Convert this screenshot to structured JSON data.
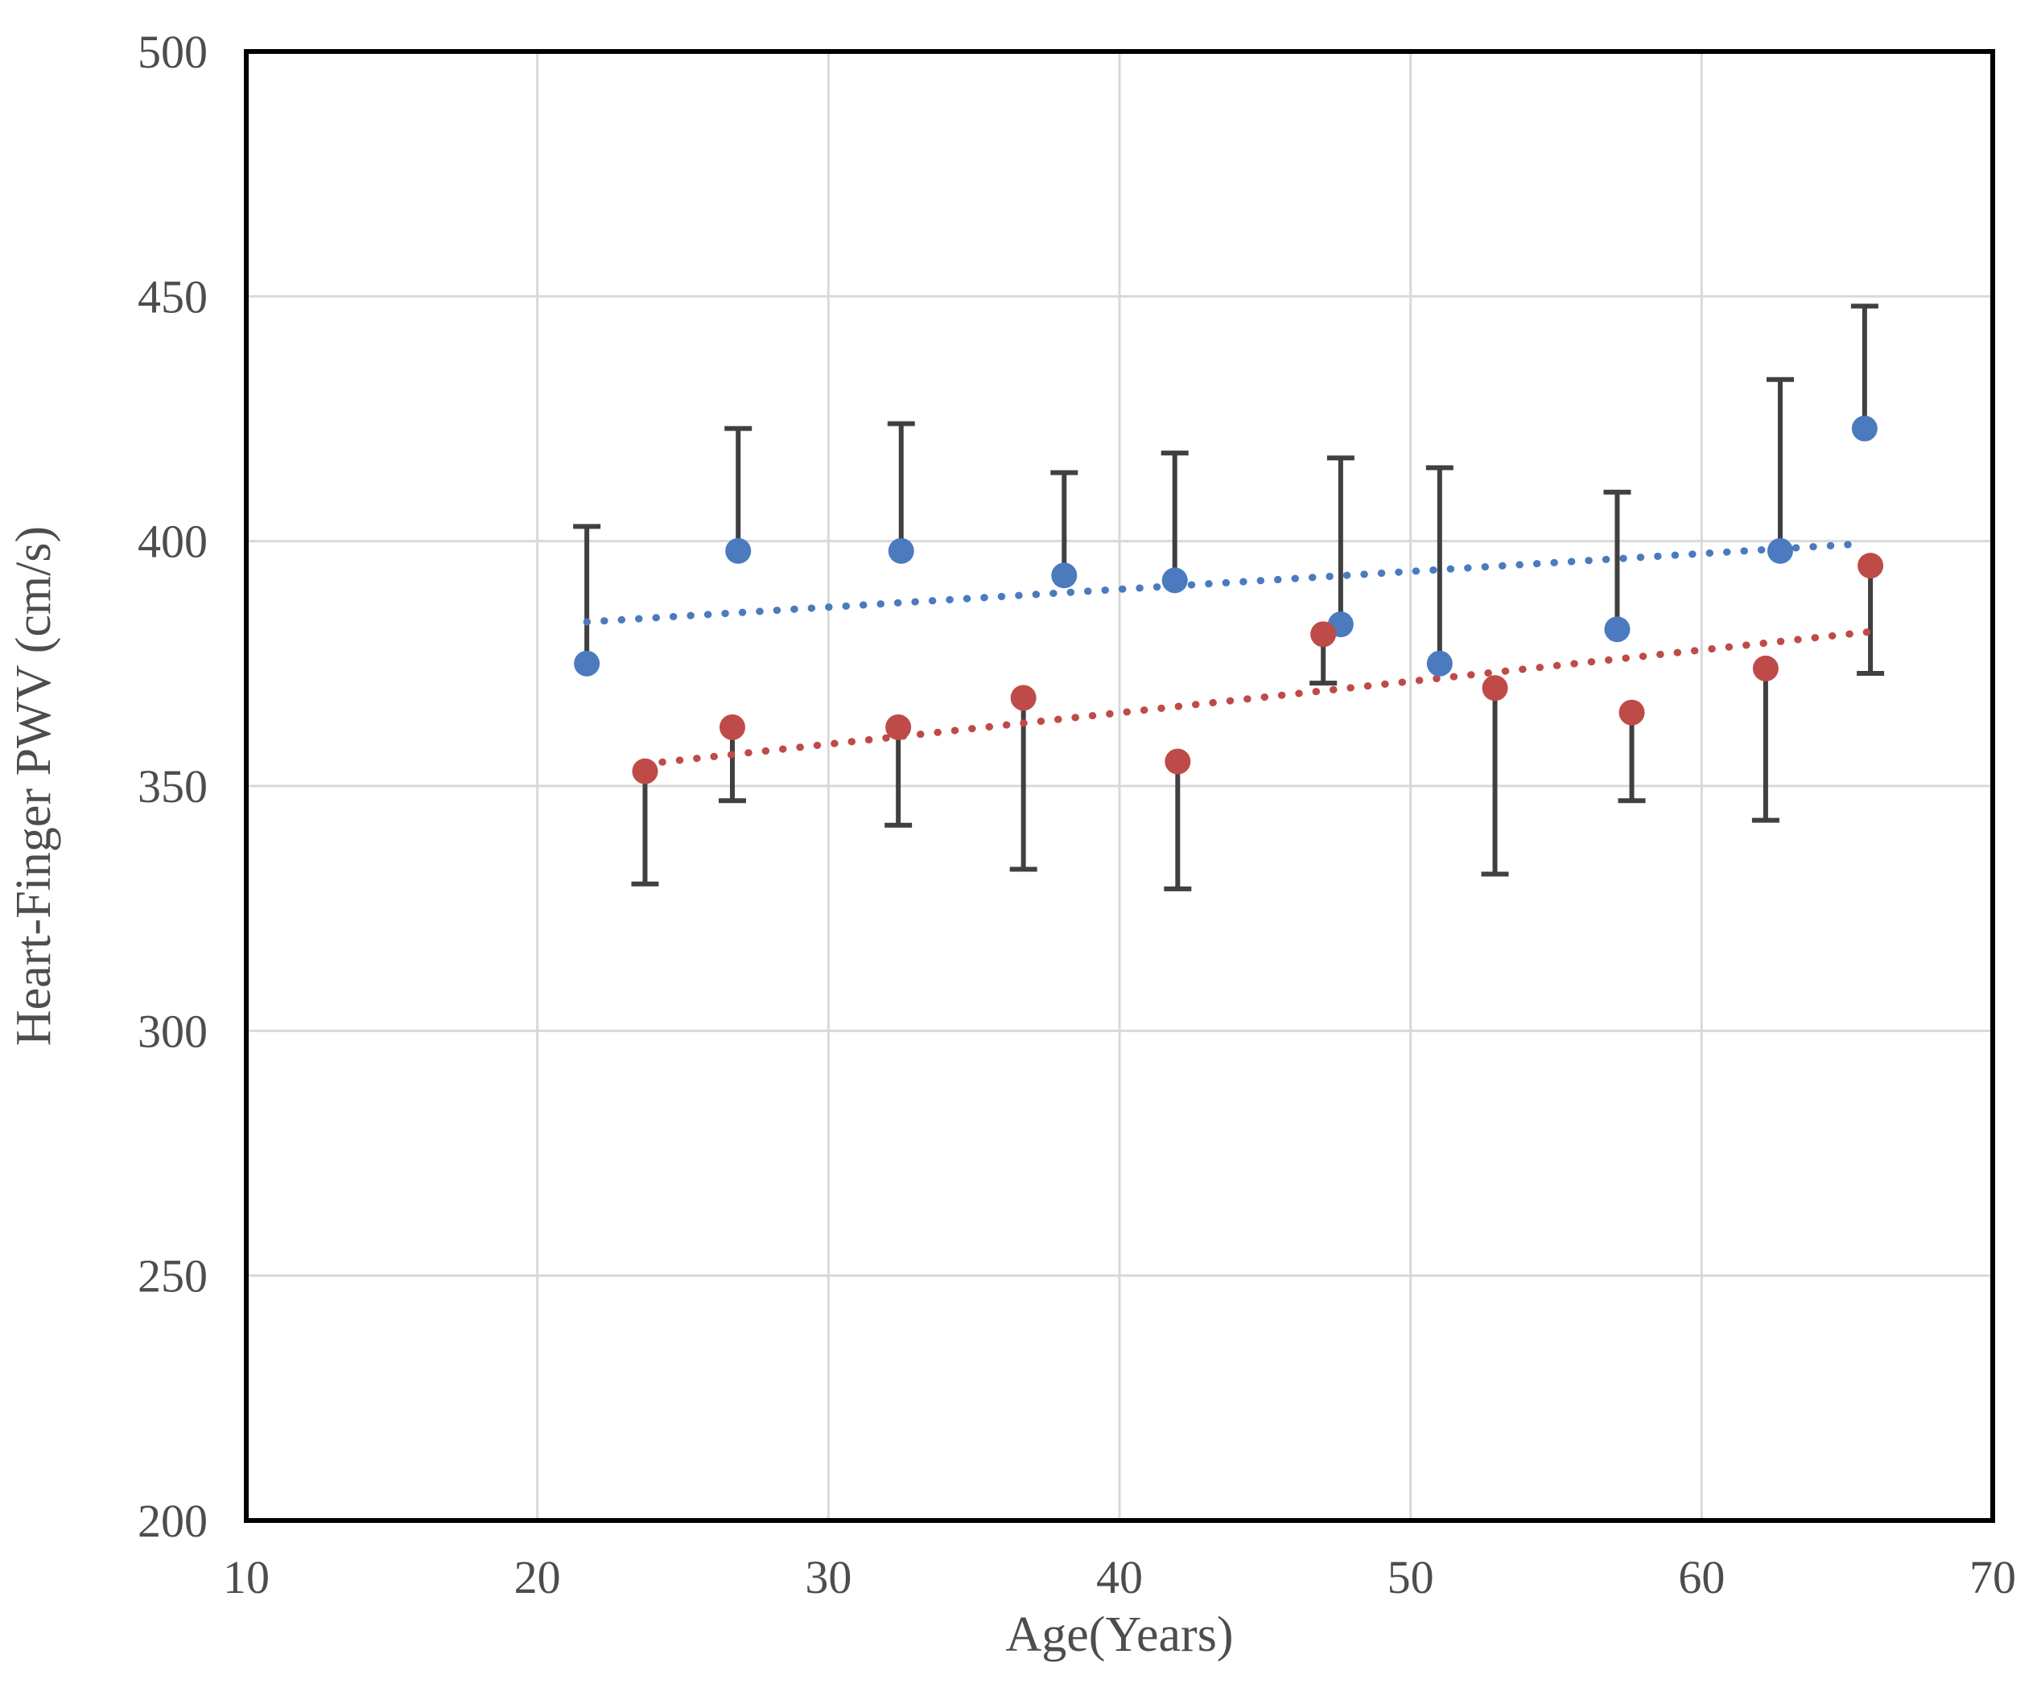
{
  "chart_data": {
    "type": "scatter",
    "title": "",
    "xlabel": "Age(Years)",
    "ylabel": "Heart-Finger PWV (cm/s)",
    "xlim": [
      10,
      70
    ],
    "ylim": [
      200,
      500
    ],
    "x_ticks": [
      10,
      20,
      30,
      40,
      50,
      60,
      70
    ],
    "y_ticks": [
      200,
      250,
      300,
      350,
      400,
      450,
      500
    ],
    "grid": true,
    "legend": "none",
    "error_bar_color": "#404040",
    "grid_color": "#d9d9d9",
    "border_color": "#000000",
    "series": [
      {
        "name": "blue-series",
        "marker": "circle",
        "color": "#4b7bbe",
        "error_direction": "up",
        "points": [
          {
            "x": 21.7,
            "y": 375,
            "err_end": 403
          },
          {
            "x": 26.9,
            "y": 398,
            "err_end": 423
          },
          {
            "x": 32.5,
            "y": 398,
            "err_end": 424
          },
          {
            "x": 38.1,
            "y": 393,
            "err_end": 414
          },
          {
            "x": 41.9,
            "y": 392,
            "err_end": 418
          },
          {
            "x": 47.6,
            "y": 383,
            "err_end": 417
          },
          {
            "x": 51.0,
            "y": 375,
            "err_end": 415
          },
          {
            "x": 57.1,
            "y": 382,
            "err_end": 410
          },
          {
            "x": 62.7,
            "y": 398,
            "err_end": 433
          },
          {
            "x": 65.6,
            "y": 423,
            "err_end": 448
          }
        ],
        "trend": {
          "style": "dotted",
          "x1": 21.7,
          "y1": 383.5,
          "x2": 65.6,
          "y2": 399.5
        }
      },
      {
        "name": "red-series",
        "marker": "circle",
        "color": "#be4b48",
        "error_direction": "down",
        "points": [
          {
            "x": 23.7,
            "y": 353,
            "err_end": 330
          },
          {
            "x": 26.7,
            "y": 362,
            "err_end": 347
          },
          {
            "x": 32.4,
            "y": 362,
            "err_end": 342
          },
          {
            "x": 36.7,
            "y": 368,
            "err_end": 333
          },
          {
            "x": 42.0,
            "y": 355,
            "err_end": 329
          },
          {
            "x": 47.0,
            "y": 381,
            "err_end": 371
          },
          {
            "x": 52.9,
            "y": 370,
            "err_end": 332
          },
          {
            "x": 57.6,
            "y": 365,
            "err_end": 347
          },
          {
            "x": 62.2,
            "y": 374,
            "err_end": 343
          },
          {
            "x": 65.8,
            "y": 395,
            "err_end": 373
          }
        ],
        "trend": {
          "style": "dotted",
          "x1": 23.7,
          "y1": 354.5,
          "x2": 65.8,
          "y2": 381.5
        }
      }
    ]
  }
}
